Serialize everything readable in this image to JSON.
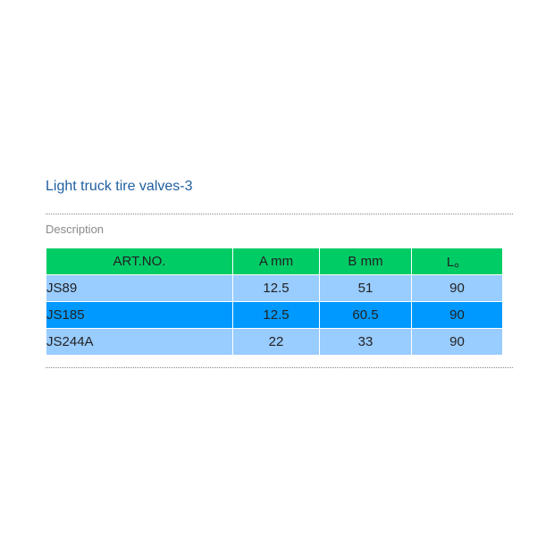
{
  "title": "Light truck tire valves-3",
  "description": "Description",
  "table": {
    "header": [
      "ART.NO.",
      "A mm",
      "B mm",
      "L。"
    ],
    "rows": [
      [
        "JS89",
        "12.5",
        "51",
        "90"
      ],
      [
        "JS185",
        "12.5",
        "60.5",
        "90"
      ],
      [
        "JS244A",
        "22",
        "33",
        "90"
      ]
    ]
  }
}
